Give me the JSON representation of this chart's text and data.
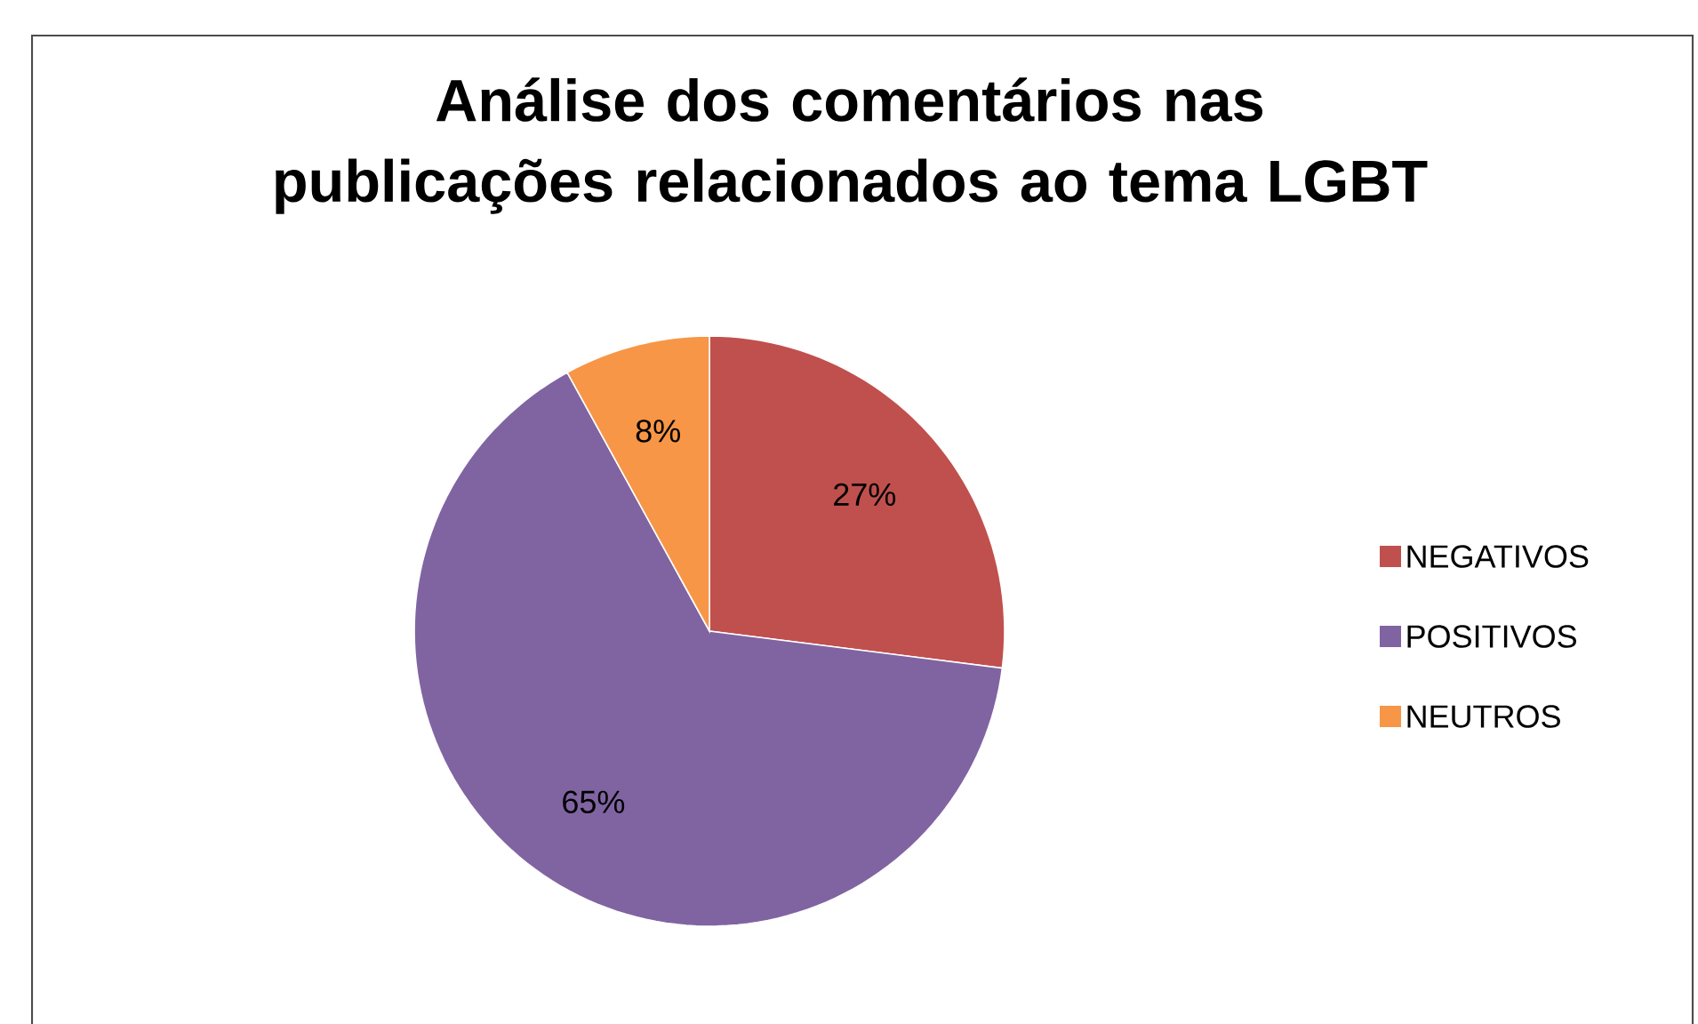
{
  "chart_data": {
    "type": "pie",
    "title": "Análise dos comentários nas publicações relacionados ao tema LGBT",
    "categories": [
      "NEGATIVOS",
      "POSITIVOS",
      "NEUTROS"
    ],
    "values": [
      27,
      65,
      8
    ],
    "value_labels": [
      "27%",
      "65%",
      "8%"
    ],
    "colors": [
      "#c0504d",
      "#8064a2",
      "#f79646"
    ],
    "legend": "right"
  }
}
